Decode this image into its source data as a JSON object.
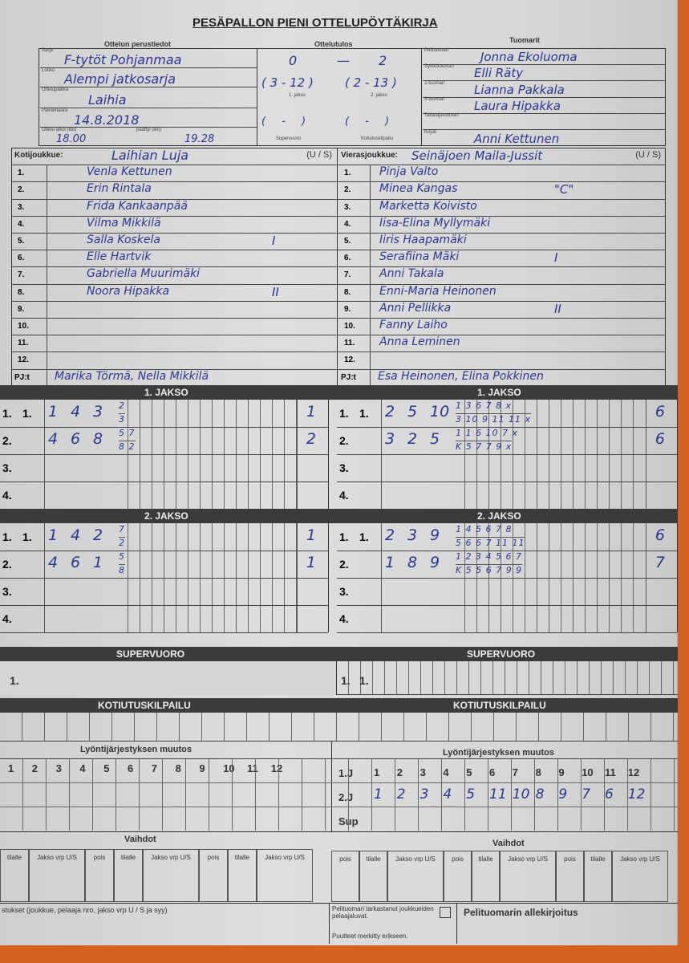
{
  "title": "PESÄPALLON PIENI OTTELUPÖYTÄKIRJA",
  "basic": {
    "heading": "Ottelun perustiedot",
    "series_label": "Sarja",
    "series": "F-tytöt Pohjanmaa",
    "group_label": "Lohko",
    "group": "Alempi jatkosarja",
    "venue_label": "Ottelupaikka",
    "venue": "Laihia",
    "date_label": "Päivämäärä",
    "date": "14.8.2018",
    "start_label": "Ottelu alkoi (klo)",
    "start": "18.00",
    "end_label": "päättyi (klo)",
    "end": "19.28"
  },
  "result": {
    "heading": "Ottelutulos",
    "home": "0",
    "away": "2",
    "period1": "( 3 - 12 )",
    "period1_label": "1. jakso",
    "period2": "( 2 - 13 )",
    "period2_label": "2. jakso",
    "super": "( - )",
    "super_label": "Supervuoro",
    "home_run": "( - )",
    "home_run_label": "Kotiutuskilpailu"
  },
  "officials": {
    "heading": "Tuomarit",
    "items": [
      {
        "label": "Pelituomari",
        "name": "Jonna Ekoluoma"
      },
      {
        "label": "Syöttötuomari",
        "name": "Elli Räty"
      },
      {
        "label": "2-tuomari",
        "name": "Lianna Pakkala"
      },
      {
        "label": "3-tuomari",
        "name": "Laura Hipakka"
      },
      {
        "label": "Takarajatuomari",
        "name": ""
      },
      {
        "label": "Kirjuri",
        "name": "Anni Kettunen"
      }
    ]
  },
  "home": {
    "label": "Kotijoukkue:",
    "name": "Laihian Luja",
    "us": "(U / S)",
    "players": [
      "Venla Kettunen",
      "Erin Rintala",
      "Frida Kankaanpää",
      "Vilma Mikkilä",
      "Salla Koskela",
      "Elle Hartvik",
      "Gabriella Muurimäki",
      "Noora Hipakka",
      "",
      "",
      "",
      ""
    ],
    "marks": [
      "",
      "",
      "",
      "",
      "I",
      "",
      "",
      "II",
      "",
      "",
      "",
      ""
    ],
    "pj_label": "PJ:t",
    "pj": "Marika Törmä, Nella Mikkilä"
  },
  "away": {
    "label": "Vierasjoukkue:",
    "name": "Seinäjoen Maila-Jussit",
    "us": "(U / S)",
    "players": [
      "Pinja Valto",
      "Minea Kangas",
      "Marketta Koivisto",
      "Iisa-Elina Myllymäki",
      "Iiris Haapamäki",
      "Serafiina Mäki",
      "Anni Takala",
      "Enni-Maria Heinonen",
      "Anni Pellikka",
      "Fanny Laiho",
      "Anna Leminen",
      ""
    ],
    "marks": [
      "",
      "\"C\"",
      "",
      "",
      "",
      "I",
      "",
      "",
      "II",
      "",
      "",
      ""
    ],
    "pj_label": "PJ:t",
    "pj": "Esa Heinonen, Elina Pokkinen"
  },
  "row_numbers": [
    "1.",
    "2.",
    "3.",
    "4.",
    "5.",
    "6.",
    "7.",
    "8.",
    "9.",
    "10.",
    "11.",
    "12."
  ],
  "periods": [
    {
      "title": "1. JAKSO",
      "home": [
        {
          "row": "1.",
          "sub": "1.",
          "batters": [
            "1",
            "4",
            "3"
          ],
          "top": "2",
          "bottom": "3",
          "runs": "1"
        },
        {
          "row": "2.",
          "sub": "",
          "batters": [
            "4",
            "6",
            "8"
          ],
          "top": "5 7",
          "bottom": "8 2",
          "runs": "2"
        },
        {
          "row": "3.",
          "sub": "",
          "batters": [],
          "top": "",
          "bottom": "",
          "runs": ""
        },
        {
          "row": "4.",
          "sub": "",
          "batters": [],
          "top": "",
          "bottom": "",
          "runs": ""
        }
      ],
      "away": [
        {
          "row": "1.",
          "sub": "1.",
          "batters": [
            "2",
            "5",
            "10"
          ],
          "top": "1 3 6 7 8 x",
          "bottom": "3 10 9 11 11 x",
          "runs": "6"
        },
        {
          "row": "2.",
          "sub": "",
          "batters": [
            "3",
            "2",
            "5"
          ],
          "top": "1 1 6 10 7 x",
          "bottom": "K 5 7 7 9 x",
          "runs": "6"
        },
        {
          "row": "3.",
          "sub": "",
          "batters": [],
          "top": "",
          "bottom": "",
          "runs": ""
        },
        {
          "row": "4.",
          "sub": "",
          "batters": [],
          "top": "",
          "bottom": "",
          "runs": ""
        }
      ]
    },
    {
      "title": "2. JAKSO",
      "home": [
        {
          "row": "1.",
          "sub": "1.",
          "batters": [
            "1",
            "4",
            "2"
          ],
          "top": "7",
          "bottom": "2",
          "runs": "1"
        },
        {
          "row": "2.",
          "sub": "",
          "batters": [
            "4",
            "6",
            "1"
          ],
          "top": "5",
          "bottom": "8",
          "runs": "1"
        },
        {
          "row": "3.",
          "sub": "",
          "batters": [],
          "top": "",
          "bottom": "",
          "runs": ""
        },
        {
          "row": "4.",
          "sub": "",
          "batters": [],
          "top": "",
          "bottom": "",
          "runs": ""
        }
      ],
      "away": [
        {
          "row": "1.",
          "sub": "1.",
          "batters": [
            "2",
            "3",
            "9"
          ],
          "top": "1 4 5 6 7 8",
          "bottom": "5 6 6 7 11 11",
          "runs": "6"
        },
        {
          "row": "2.",
          "sub": "",
          "batters": [
            "1",
            "8",
            "9"
          ],
          "top": "1 2 3 4 5 6 7",
          "bottom": "K 5 5 6 7 9 9",
          "runs": "7"
        },
        {
          "row": "3.",
          "sub": "",
          "batters": [],
          "top": "",
          "bottom": "",
          "runs": ""
        },
        {
          "row": "4.",
          "sub": "",
          "batters": [],
          "top": "",
          "bottom": "",
          "runs": ""
        }
      ]
    }
  ],
  "super": {
    "title": "SUPERVUORO",
    "home_row": "1.",
    "away_row": "1.",
    "away_sub": "1."
  },
  "homerun": {
    "title": "KOTIUTUSKILPAILU"
  },
  "lineup": {
    "title": "Lyöntijärjestyksen muutos",
    "cols": [
      "1",
      "2",
      "3",
      "4",
      "5",
      "6",
      "7",
      "8",
      "9",
      "10",
      "11",
      "12"
    ],
    "away_rows": [
      "1.J",
      "2.J",
      "Sup"
    ],
    "away_2j": [
      "1",
      "2",
      "3",
      "4",
      "5",
      "11",
      "10",
      "8",
      "9",
      "7",
      "6",
      "12"
    ]
  },
  "subs": {
    "title": "Vaihdot",
    "home_cols": [
      "tilalle",
      "Jakso vrp U/S",
      "pois",
      "tilalle",
      "Jakso vrp U/S",
      "pois",
      "tilalle",
      "Jakso vrp U/S"
    ],
    "away_cols": [
      "pois",
      "tilalle",
      "Jakso vrp U/S",
      "pois",
      "tilalle",
      "Jakso vrp U/S",
      "pois",
      "tilalle",
      "Jakso vrp U/S"
    ]
  },
  "footer": {
    "notes": "stukset (joukkue, pelaaja nro, jakso vrp U / S ja syy)",
    "check": "Pelituomari tarkastanut joukkueiden pelaajaluvat.",
    "missing": "Puutteet merkitty erikseen.",
    "signature": "Pelituomarin allekirjoitus"
  }
}
